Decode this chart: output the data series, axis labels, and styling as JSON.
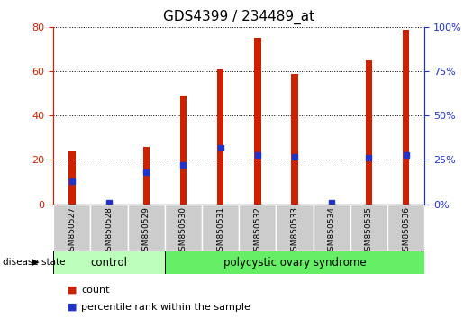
{
  "title": "GDS4399 / 234489_at",
  "samples": [
    "GSM850527",
    "GSM850528",
    "GSM850529",
    "GSM850530",
    "GSM850531",
    "GSM850532",
    "GSM850533",
    "GSM850534",
    "GSM850535",
    "GSM850536"
  ],
  "count_values": [
    24,
    0,
    26,
    49,
    61,
    75,
    59,
    0,
    65,
    79
  ],
  "percentile_values": [
    13,
    1,
    18,
    22,
    32,
    28,
    27,
    1,
    26,
    28
  ],
  "ylim_left": [
    0,
    80
  ],
  "ylim_right": [
    0,
    100
  ],
  "yticks_left": [
    0,
    20,
    40,
    60,
    80
  ],
  "yticks_right": [
    0,
    25,
    50,
    75,
    100
  ],
  "control_indices": [
    0,
    1,
    2
  ],
  "polycystic_indices": [
    3,
    4,
    5,
    6,
    7,
    8,
    9
  ],
  "control_label": "control",
  "polycystic_label": "polycystic ovary syndrome",
  "disease_state_label": "disease state",
  "legend_count_label": "count",
  "legend_percentile_label": "percentile rank within the sample",
  "bar_color_count": "#cc2200",
  "bar_color_percentile": "#2233cc",
  "bar_width": 0.18,
  "percentile_marker_size": 5,
  "control_bg": "#bbffbb",
  "polycystic_bg": "#66ee66",
  "tick_label_bg": "#cccccc",
  "title_fontsize": 11,
  "tick_fontsize": 8,
  "left_tick_color": "#cc2200",
  "right_tick_color": "#2233cc"
}
